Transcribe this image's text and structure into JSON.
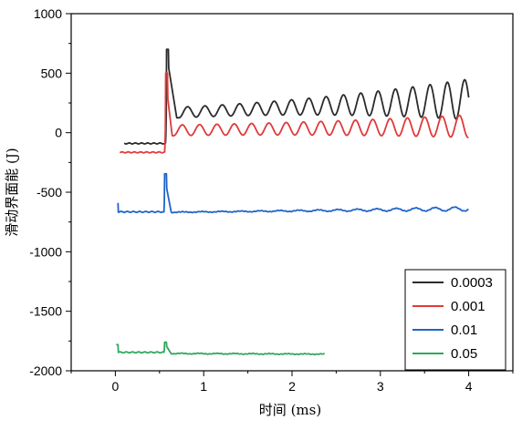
{
  "chart_data": {
    "type": "line",
    "title": "",
    "xlabel": "时间 (ms)",
    "ylabel": "滑动界面能 (J)",
    "xlim": [
      -0.5,
      4.5
    ],
    "ylim": [
      -2000,
      1000
    ],
    "xticks": [
      0,
      1,
      2,
      3,
      4
    ],
    "yticks": [
      -2000,
      -1500,
      -1000,
      -500,
      0,
      500,
      1000
    ],
    "legend_position": "bottom-right",
    "grid": false,
    "series": [
      {
        "name": "0.0003",
        "color": "#2b2b2b",
        "x_start": 0.1,
        "x_end": 4.0,
        "baseline": -90,
        "baseline_end": 0.57,
        "spike_x": 0.59,
        "spike_peak": 700,
        "osc_start": 0.72,
        "osc_center_start": 170,
        "osc_center_end": 280,
        "osc_amp_start": 45,
        "osc_amp_end": 170,
        "osc_period": 0.196
      },
      {
        "name": "0.001",
        "color": "#e03a3a",
        "x_start": 0.05,
        "x_end": 4.0,
        "baseline": -165,
        "baseline_end": 0.56,
        "spike_x": 0.58,
        "spike_peak": 500,
        "osc_start": 0.66,
        "osc_center_start": 20,
        "osc_center_end": 55,
        "osc_amp_start": 45,
        "osc_amp_end": 95,
        "osc_period": 0.196
      },
      {
        "name": "0.01",
        "color": "#1f64c8",
        "x_start": 0.03,
        "x_end": 4.0,
        "baseline": -665,
        "baseline_end": 0.55,
        "spike_x": 0.57,
        "spike_peak": -345,
        "osc_start": 0.65,
        "osc_center_start": -668,
        "osc_center_end": -640,
        "osc_amp_start": 3,
        "osc_amp_end": 18,
        "osc_period": 0.22,
        "pre_spike_x": 0.02,
        "pre_spike_peak": -590
      },
      {
        "name": "0.05",
        "color": "#2fa85a",
        "x_start": 0.01,
        "x_end": 2.37,
        "baseline": -1845,
        "baseline_end": 0.55,
        "spike_x": 0.57,
        "spike_peak": -1760,
        "osc_start": 0.65,
        "osc_center_start": -1855,
        "osc_center_end": -1860,
        "osc_amp_start": 3,
        "osc_amp_end": 2,
        "osc_period": 0.2,
        "pre_spike_x": 0.02,
        "pre_spike_peak": -1780
      }
    ]
  }
}
